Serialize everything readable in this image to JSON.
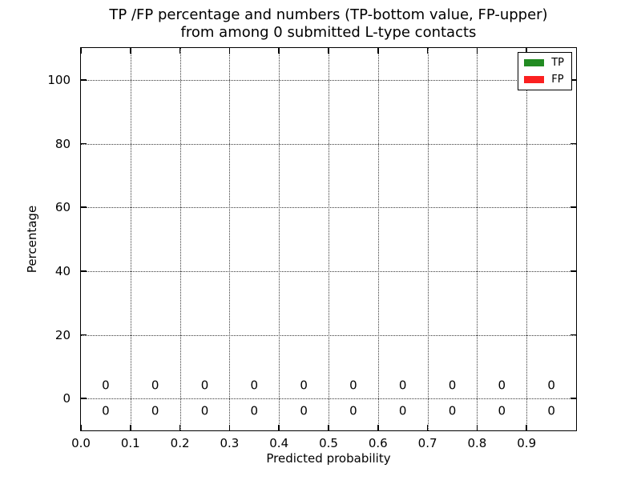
{
  "title": {
    "line1": "TP /FP percentage and numbers (TP-bottom value, FP-upper)",
    "line2": "from among 0 submitted L-type contacts"
  },
  "axes": {
    "xlabel": "Predicted probability",
    "ylabel": "Percentage"
  },
  "legend": {
    "position": "upper right",
    "items": [
      {
        "label": "TP",
        "color": "#228B22"
      },
      {
        "label": "FP",
        "color": "#FB2020"
      }
    ]
  },
  "chart_data": {
    "type": "bar",
    "title": "TP /FP percentage and numbers (TP-bottom value, FP-upper) from among 0 submitted L-type contacts",
    "xlabel": "Predicted probability",
    "ylabel": "Percentage",
    "xlim": [
      0.0,
      1.0
    ],
    "ylim": [
      -10,
      110
    ],
    "grid": true,
    "legend_position": "upper right",
    "xtick_values": [
      0.0,
      0.1,
      0.2,
      0.3,
      0.4,
      0.5,
      0.6,
      0.7,
      0.8,
      0.9
    ],
    "xtick_labels": [
      "0.0",
      "0.1",
      "0.2",
      "0.3",
      "0.4",
      "0.5",
      "0.6",
      "0.7",
      "0.8",
      "0.9"
    ],
    "ytick_values": [
      0,
      20,
      40,
      60,
      80,
      100
    ],
    "ytick_labels": [
      "0",
      "20",
      "40",
      "60",
      "80",
      "100"
    ],
    "bin_centers": [
      0.05,
      0.15,
      0.25,
      0.35,
      0.45,
      0.55,
      0.65,
      0.75,
      0.85,
      0.95
    ],
    "series": [
      {
        "name": "TP",
        "color": "#228B22",
        "percent_values": [
          0,
          0,
          0,
          0,
          0,
          0,
          0,
          0,
          0,
          0
        ],
        "counts": [
          0,
          0,
          0,
          0,
          0,
          0,
          0,
          0,
          0,
          0
        ],
        "count_label_y": -4
      },
      {
        "name": "FP",
        "color": "#FB2020",
        "percent_values": [
          0,
          0,
          0,
          0,
          0,
          0,
          0,
          0,
          0,
          0
        ],
        "counts": [
          0,
          0,
          0,
          0,
          0,
          0,
          0,
          0,
          0,
          0
        ],
        "count_label_y": 4
      }
    ]
  }
}
